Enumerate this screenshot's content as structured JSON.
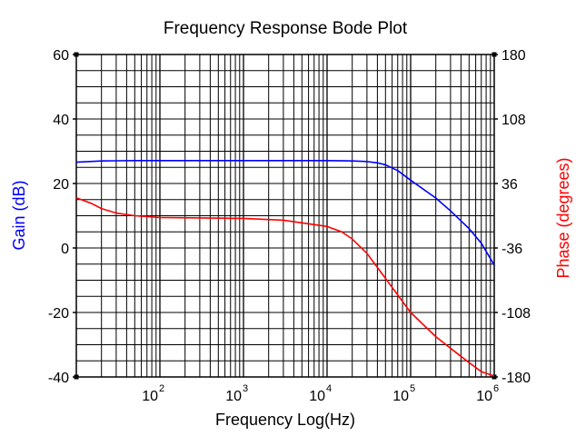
{
  "chart_data": {
    "type": "line",
    "title": "Frequency Response Bode Plot",
    "xlabel": "Frequency Log(Hz)",
    "ylabel_left": "Gain (dB)",
    "ylabel_right": "Phase (degrees)",
    "x_scale": "log",
    "xlim": [
      10,
      1000000
    ],
    "ylim_left": [
      -40,
      60
    ],
    "ylim_right": [
      -180,
      180
    ],
    "grid": true,
    "x_tick_labels": [
      {
        "base": "10",
        "exp": "2",
        "value": 100
      },
      {
        "base": "10",
        "exp": "3",
        "value": 1000
      },
      {
        "base": "10",
        "exp": "4",
        "value": 10000
      },
      {
        "base": "10",
        "exp": "5",
        "value": 100000
      },
      {
        "base": "10",
        "exp": "6",
        "value": 1000000
      }
    ],
    "y_left_ticks": [
      "60",
      "40",
      "20",
      "0",
      "-20",
      "-40"
    ],
    "y_right_ticks": [
      "180",
      "108",
      "36",
      "-36",
      "-108",
      "-180"
    ],
    "colors": {
      "gain": "#0000ff",
      "phase": "#ff0000",
      "grid": "#000000"
    },
    "series": [
      {
        "name": "Gain (dB)",
        "axis": "left",
        "color": "#0000ff",
        "x": [
          10,
          20,
          50,
          100,
          1000,
          10000,
          20000,
          30000,
          40000,
          50000,
          70000,
          100000,
          200000,
          300000,
          500000,
          700000,
          1000000
        ],
        "y": [
          26.6,
          27.0,
          27.1,
          27.1,
          27.1,
          27.1,
          27.0,
          26.8,
          26.4,
          25.8,
          24.0,
          21.0,
          15.5,
          11.5,
          6.0,
          1.5,
          -5.3
        ]
      },
      {
        "name": "Phase (degrees)",
        "axis": "right",
        "color": "#ff0000",
        "x": [
          10,
          15,
          20,
          30,
          50,
          100,
          1000,
          3000,
          10000,
          15000,
          20000,
          30000,
          50000,
          100000,
          200000,
          300000,
          500000,
          700000,
          1000000
        ],
        "y": [
          20,
          14,
          8,
          3,
          0,
          -2,
          -3,
          -5,
          -12,
          -18,
          -26,
          -42,
          -70,
          -108,
          -135,
          -148,
          -164,
          -174,
          -179
        ]
      }
    ]
  }
}
